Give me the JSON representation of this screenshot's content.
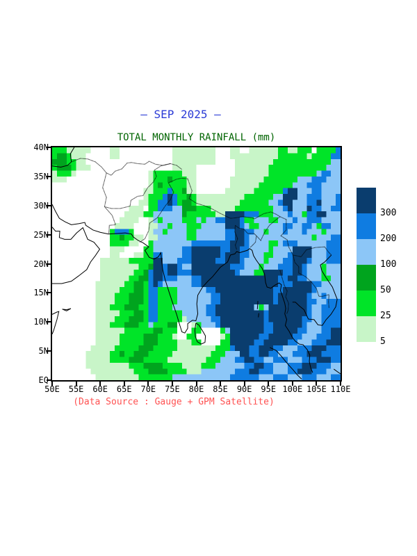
{
  "title": {
    "text": "— SEP 2025 —",
    "color": "#2b3bd6"
  },
  "subtitle": {
    "text": "TOTAL MONTHLY RAINFALL (mm)",
    "color": "#006400"
  },
  "source_note": {
    "text": "(Data Source : Gauge + GPM Satellite)",
    "color": "#ff5252"
  },
  "legend": {
    "labels_top_to_bottom": [
      "300",
      "200",
      "100",
      "50",
      "25",
      "5"
    ],
    "swatch_colors_top_to_bottom": [
      "#0a3d6e",
      "#0f7ce1",
      "#8cc6f7",
      "#00a41e",
      "#00e428",
      "#c8f5c8"
    ]
  },
  "axes": {
    "x": {
      "labels": [
        "50E",
        "55E",
        "60E",
        "65E",
        "70E",
        "75E",
        "80E",
        "85E",
        "90E",
        "95E",
        "100E",
        "105E",
        "110E"
      ],
      "values": [
        50,
        55,
        60,
        65,
        70,
        75,
        80,
        85,
        90,
        95,
        100,
        105,
        110
      ]
    },
    "y": {
      "labels": [
        "EQ",
        "5N",
        "10N",
        "15N",
        "20N",
        "25N",
        "30N",
        "35N",
        "40N"
      ],
      "values": [
        0,
        5,
        10,
        15,
        20,
        25,
        30,
        35,
        40
      ]
    }
  },
  "chart_data": {
    "type": "heatmap",
    "title": "TOTAL MONTHLY RAINFALL (mm)",
    "period": "SEP 2025",
    "units": "mm",
    "lon_range": [
      50,
      110
    ],
    "lat_range": [
      0,
      40
    ],
    "grid_cols": 60,
    "grid_rows": 40,
    "row_order": "north_to_south",
    "level_thresholds_mm": [
      5,
      25,
      50,
      100,
      200,
      300
    ],
    "level_meaning": [
      "<5",
      "5-25",
      "25-50",
      "50-100",
      "100-200",
      "200-300",
      ">300"
    ],
    "level_palette": [
      "#ffffff",
      "#c8f5c8",
      "#00e428",
      "#00a41e",
      "#8cc6f7",
      "#0f7ce1",
      "#0a3d6e"
    ],
    "rows_rle": [
      "3*2,5*1,4*0,2*1,11*0,5*1,4*1,3*0,2*1,2*0,6*1,2*2,2*1,3*2,1*0,3*2,1*2,1*5",
      "1*2,2*3,1*2,3*1,5*0,2*1,11*0,6*1,3*1,3*0,7*1,3*1,6*2,1*1,3*2,1*2,2*5",
      "3*3,2*2,2*1,18*0,5*1,4*1,4*0,8*1,7*2,3*2,2*2,2*4",
      "1*2,3*3,1*2,3*1,17*0,5*1,8*0,7*1,8*2,4*2,3*4",
      "1*1,3*2,1*1,15*0,1*1,6*2,3*1,8*0,7*1,6*2,4*2,1*4,2*5,2*4",
      "3*1,17*0,1*1,3*2,1*3,3*2,2*1,7*0,7*1,7*2,3*4,3*5,3*4",
      "20*0,1*1,1*2,1*3,5*2,2*1,7*0,6*1,7*2,3*4,3*5,4*4",
      "19*0,2*1,3*2,1*5,2*2,1*3,2*1,6*0,6*1,6*2,1*5,2*6,3*4,2*5,4*4",
      "19*0,1*1,3*2,1*5,1*6,1*5,2*2,1*3,1*2,10*1,6*2,2*4,3*6,2*4,3*5,3*4,1*5",
      "18*0,2*1,2*2,2*5,1*6,1*5,1*2,2*3,1*2,9*1,6*2,2*4,1*5,2*6,3*4,2*5,1*6,3*4,1*5",
      "16*0,3*1,1*0,2*2,3*5,2*4,3*3,3*2,5*1,8*2,2*4,1*5,1*6,3*4,1*6,2*5,2*4,2*5",
      "15*0,4*1,2*2,6*4,1*3,6*2,2*1,4*6,3*5,3*2,3*4,1*5,2*4,1*2,2*5,2*6,3*4",
      "14*0,4*1,2*0,1*1,1*4,1*2,4*4,3*2,1*4,1*2,2*4,2*5,3*6,1*5,2*2,3*4,2*2,3*4,1*5,2*4,3*5,4*4",
      "13*0,4*1,3*0,2*1,2*4,1*2,3*4,3*2,5*4,3*6,1*5,1*4,2*2,5*4,2*5,2*4,2*5,1*4,1*2,2*5,2*4",
      "12*0,1*2,3*5,1*2,3*0,1*1,2*4,1*2,4*4,2*2,6*4,2*5,2*6,2*5,2*4,1*2,3*4,1*5,3*4,1*5,3*4,1*2,3*4",
      "12*0,2*2,1*3,2*2,2*1,1*0,2*1,6*4,2*2,6*4,2*5,2*6,1*5,13*4,1*2,3*4,2*5",
      "12*0,4*2,2*1,2*0,1*2,8*4,8*5,3*6,1*5,4*4,2*2,1*4,3*5,6*4,3*5",
      "12*0,3*1,4*0,2*2,6*4,2*5,6*6,2*5,2*6,2*5,4*4,1*2,4*4,4*6,3*4,3*5",
      "12*0,2*1,3*0,2*1,2*2,2*5,4*4,2*5,6*6,1*5,3*6,2*5,3*4,2*2,3*4,1*5,4*6,3*4,3*5",
      "10*0,6*1,5*2,2*6,3*4,3*5,5*6,2*5,3*6,1*5,4*4,1*2,3*4,2*5,3*6,1*5,3*4,3*5",
      "10*0,8*1,2*2,1*3,2*6,1*5,2*6,1*5,2*4,8*6,3*5,3*4,1*2,3*4,3*5,2*6,1*5,3*4,1*2,3*4",
      "10*0,7*1,2*2,1*3,1*5,2*6,1*5,2*6,3*5,9*6,1*5,3*4,2*2,4*6,2*5,2*6,1*5,3*4,1*2,3*4",
      "10*0,6*1,2*2,2*3,1*5,2*6,3*5,3*4,2*5,16*6,2*5,2*6,2*5,3*4,2*2,2*4",
      "9*0,6*1,2*2,2*3,1*2,1*5,1*6,1*5,6*4,2*5,16*6,3*5,4*6,2*5,4*4",
      "9*0,5*1,3*2,2*3,1*2,2*5,4*2,6*4,2*5,12*6,2*5,6*6,1*5,5*4",
      "9*0,4*1,3*2,3*3,1*2,2*5,4*2,7*4,2*5,11*6,1*5,6*6,1*5,2*4,1*5,3*4",
      "9*0,4*1,3*2,3*3,1*2,2*5,4*2,7*4,2*5,11*6,1*5,6*6,2*5,2*4,3*5",
      "9*0,3*1,3*2,3*3,2*2,2*5,3*2,7*4,2*5,8*6,1*4,1*2,1*4,8*6,1*5,2*4,4*5",
      "9*0,5*1,3*2,2*3,1*2,2*5,5*2,5*4,2*5,10*6,1*5,8*6,1*5,2*4,4*5",
      "9*0,4*1,3*2,3*3,1*2,2*5,5*2,1*1,5*4,2*5,9*6,1*5,7*6,2*5,2*4,4*5",
      "9*0,3*1,3*2,3*3,2*2,1*4,3*2,2*3,3*0,1*1,1*2,3*4,1*5,9*6,2*5,6*6,1*5,3*4,4*5",
      "9*0,6*1,6*2,2*3,3*2,3*0,2*2,4*0,1*2,1*4,7*6,2*5,5*6,2*5,3*4,2*5,2*6",
      "9*0,5*1,5*2,3*3,3*2,1*1,2*0,2*2,5*0,1*1,1*2,6*6,2*5,5*6,2*5,3*4,3*5,2*6",
      "9*0,5*1,5*2,3*3,4*2,3*1,2*2,4*0,2*2,5*6,2*5,5*6,2*5,3*4,3*5,3*6",
      "8*0,5*1,5*2,3*3,5*2,8*1,3*2,1*5,3*6,2*5,3*6,2*5,3*4,3*5,3*6,3*5",
      "7*0,5*1,2*2,1*3,2*2,3*3,5*2,8*1,3*2,3*4,2*6,2*5,2*6,2*5,3*4,3*5,3*6,4*5",
      "7*0,5*1,4*2,3*3,5*2,8*1,3*2,3*4,2*5,2*6,2*5,2*4,3*5,3*4,3*5,3*6,2*5",
      "7*0,9*1,3*2,4*3,4*2,4*1,3*2,6*4,2*5,2*6,2*5,3*4,3*5,3*6,3*5,2*4",
      "8*0,9*1,3*2,4*3,4*2,3*1,7*4,3*5,2*6,3*5,3*4,2*5,3*6,3*5,3*4",
      "9*0,9*1,7*2,12*4,6*5,3*4,3*5,3*4,3*5,3*4,2*5"
    ]
  }
}
